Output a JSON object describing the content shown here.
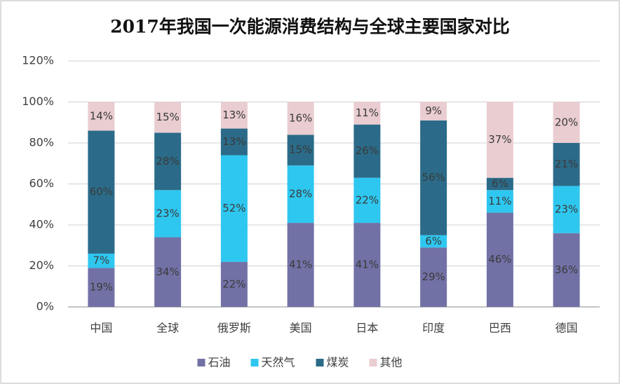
{
  "chart_data": {
    "type": "stacked_bar",
    "title": "2017年我国一次能源消费结构与全球主要国家对比",
    "categories": [
      "中国",
      "全球",
      "俄罗斯",
      "美国",
      "日本",
      "印度",
      "巴西",
      "德国"
    ],
    "series": [
      {
        "name": "石油",
        "color": "#7271a6",
        "values": [
          19,
          34,
          22,
          41,
          41,
          29,
          46,
          36
        ],
        "value_labels": [
          "19%",
          "34%",
          "22%",
          "41%",
          "41%",
          "29%",
          "46%",
          "36%"
        ]
      },
      {
        "name": "天然气",
        "color": "#2ec7f0",
        "values": [
          7,
          23,
          52,
          28,
          22,
          6,
          11,
          23
        ],
        "value_labels": [
          "7%",
          "23%",
          "52%",
          "28%",
          "22%",
          "6%",
          "11%",
          "23%"
        ]
      },
      {
        "name": "煤炭",
        "color": "#2b6b89",
        "values": [
          60,
          28,
          13,
          15,
          26,
          56,
          6,
          21
        ],
        "value_labels": [
          "60%",
          "28%",
          "13%",
          "15%",
          "26%",
          "56%",
          "6%",
          "21%"
        ]
      },
      {
        "name": "其他",
        "color": "#e9cdd1",
        "values": [
          14,
          15,
          13,
          16,
          11,
          9,
          37,
          20
        ],
        "value_labels": [
          "14%",
          "15%",
          "13%",
          "16%",
          "11%",
          "9%",
          "37%",
          "20%"
        ]
      }
    ],
    "ylim": [
      0,
      120
    ],
    "yticks": [
      {
        "value": 0,
        "label": "0%"
      },
      {
        "value": 20,
        "label": "20%"
      },
      {
        "value": 40,
        "label": "40%"
      },
      {
        "value": 60,
        "label": "60%"
      },
      {
        "value": 80,
        "label": "80%"
      },
      {
        "value": 100,
        "label": "100%"
      },
      {
        "value": 120,
        "label": "120%"
      }
    ],
    "grid": true,
    "legend": "bottom"
  }
}
